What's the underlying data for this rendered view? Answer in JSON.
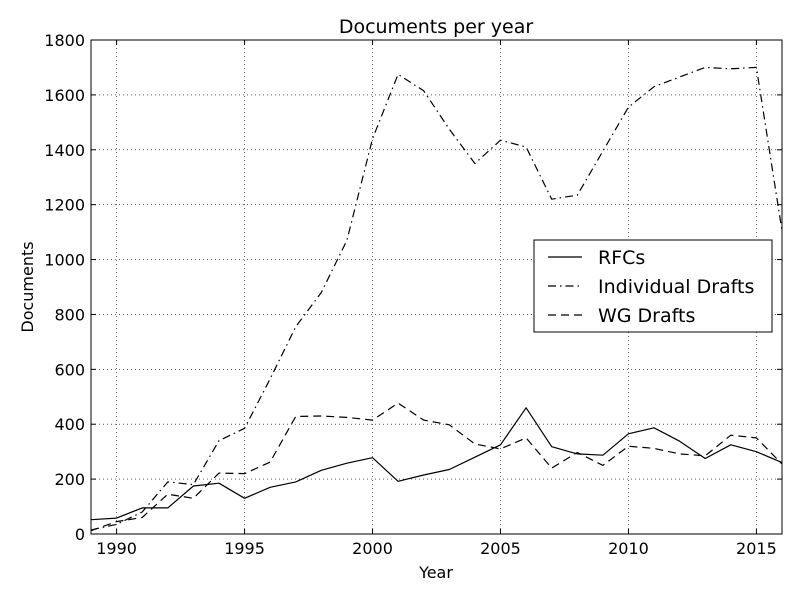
{
  "chart_data": {
    "type": "line",
    "title": "Documents per year",
    "xlabel": "Year",
    "ylabel": "Documents",
    "xlim": [
      1989,
      2016
    ],
    "ylim": [
      0,
      1800
    ],
    "xticks": [
      1990,
      1995,
      2000,
      2005,
      2010,
      2015
    ],
    "yticks": [
      0,
      200,
      400,
      600,
      800,
      1000,
      1200,
      1400,
      1600,
      1800
    ],
    "grid": true,
    "legend_position": "center-right",
    "x": [
      1989,
      1990,
      1991,
      1992,
      1993,
      1994,
      1995,
      1996,
      1997,
      1998,
      1999,
      2000,
      2001,
      2002,
      2003,
      2004,
      2005,
      2006,
      2007,
      2008,
      2009,
      2010,
      2011,
      2012,
      2013,
      2014,
      2015,
      2016
    ],
    "series": [
      {
        "name": "RFCs",
        "style": "solid",
        "values": [
          52,
          58,
          95,
          95,
          175,
          185,
          130,
          170,
          190,
          232,
          258,
          278,
          192,
          215,
          235,
          280,
          325,
          460,
          318,
          292,
          287,
          365,
          387,
          338,
          275,
          325,
          300,
          260
        ]
      },
      {
        "name": "Individual Drafts",
        "style": "dashdot",
        "values": [
          15,
          35,
          80,
          190,
          180,
          340,
          385,
          565,
          755,
          880,
          1070,
          1440,
          1675,
          1615,
          1475,
          1350,
          1435,
          1410,
          1220,
          1235,
          1395,
          1555,
          1630,
          1665,
          1700,
          1695,
          1700,
          1105
        ]
      },
      {
        "name": "WG Drafts",
        "style": "dashed",
        "values": [
          12,
          45,
          60,
          145,
          130,
          222,
          220,
          262,
          428,
          430,
          425,
          415,
          477,
          415,
          398,
          328,
          310,
          350,
          240,
          297,
          250,
          320,
          312,
          292,
          285,
          360,
          350,
          255
        ]
      }
    ]
  }
}
